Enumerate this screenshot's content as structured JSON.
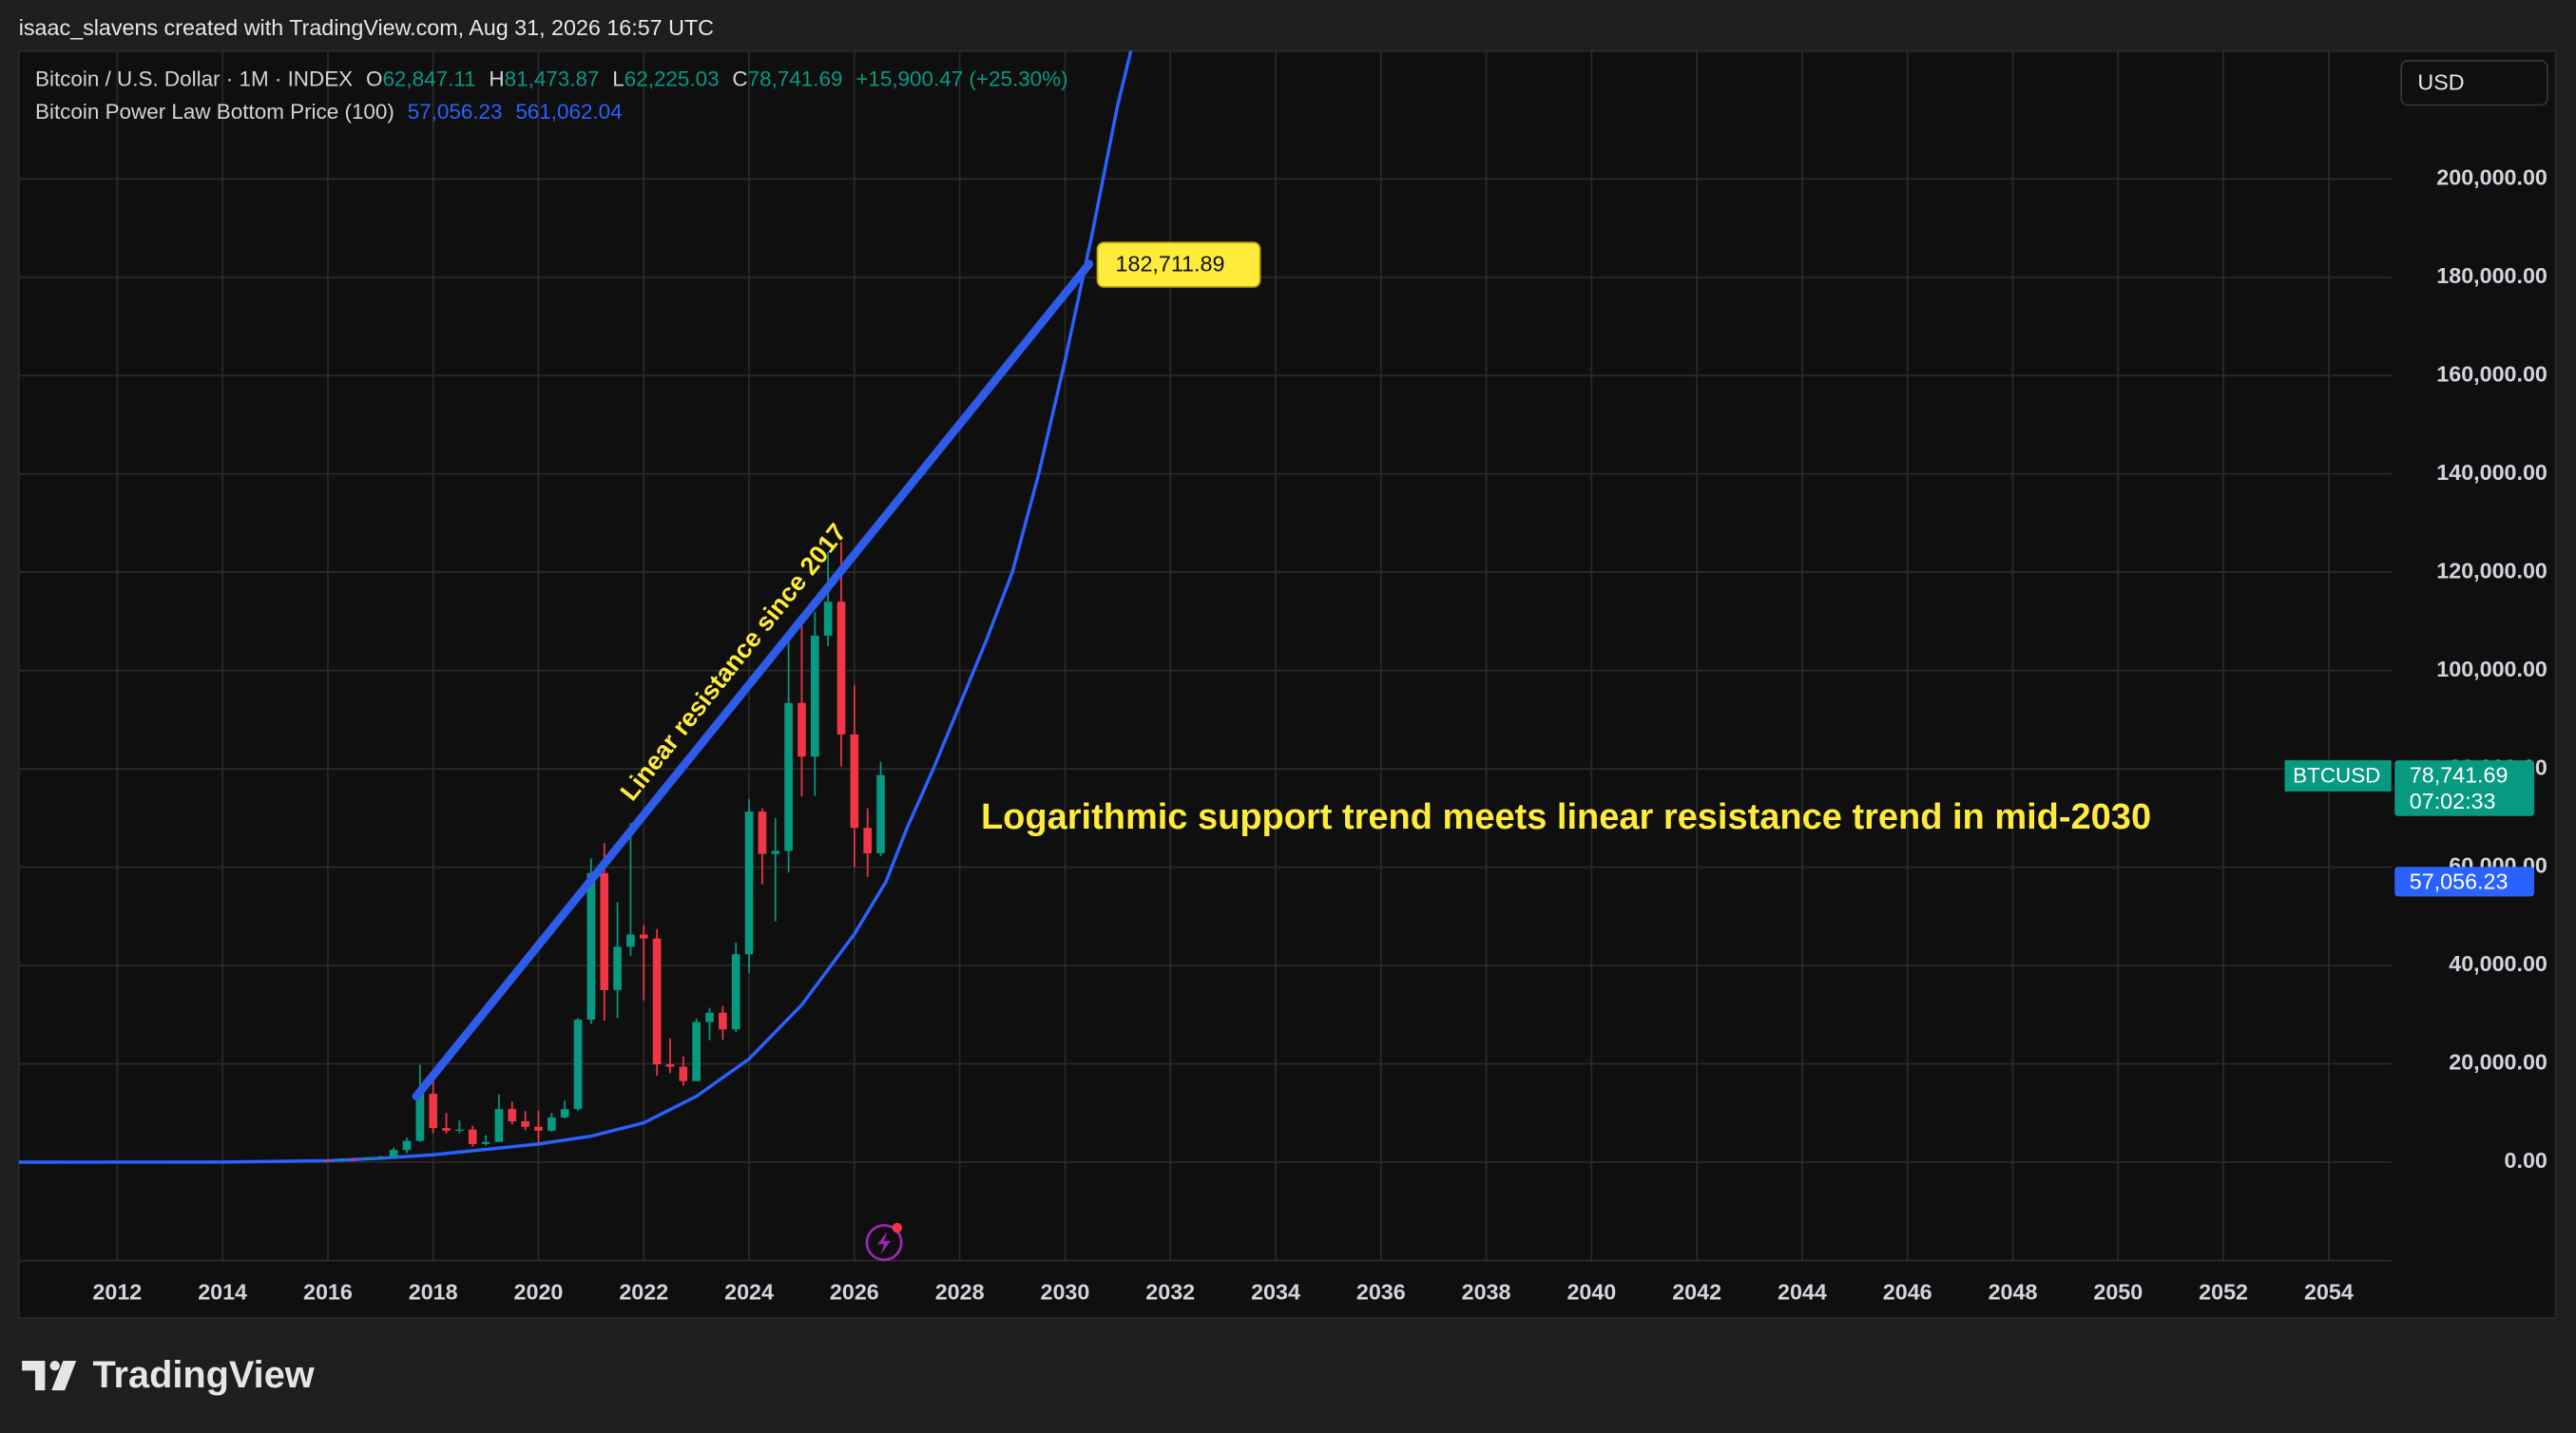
{
  "header": {
    "attribution": "isaac_slavens created with TradingView.com, Aug 31, 2026 16:57 UTC"
  },
  "chart_data": {
    "type": "candlestick",
    "legend": {
      "o_label": "O",
      "open": "62,847.11",
      "h_label": "H",
      "high": "81,473.87",
      "l_label": "L",
      "low": "62,225.03",
      "c_label": "C",
      "close": "78,741.69",
      "change": "+15,900.47 (+25.30%)",
      "value_color": "#089981",
      "indicator_values": [
        "57,056.23",
        "561,062.04"
      ],
      "indicator_color": "#2962ff"
    },
    "currency": "USD",
    "xlim": [
      2010.13,
      2055.19
    ],
    "xticks": [
      2012,
      2014,
      2016,
      2018,
      2020,
      2022,
      2024,
      2026,
      2028,
      2030,
      2032,
      2034,
      2036,
      2038,
      2040,
      2042,
      2044,
      2046,
      2048,
      2050,
      2052,
      2054
    ],
    "ylim": [
      -20030,
      226040
    ],
    "yticks": [
      {
        "value": 0,
        "label": "0.00"
      },
      {
        "value": 20000,
        "label": "20,000.00"
      },
      {
        "value": 40000,
        "label": "40,000.00"
      },
      {
        "value": 60000,
        "label": "60,000.00"
      },
      {
        "value": 80000,
        "label": "80,000.00"
      },
      {
        "value": 100000,
        "label": "100,000.00"
      },
      {
        "value": 120000,
        "label": "120,000.00"
      },
      {
        "value": 140000,
        "label": "140,000.00"
      },
      {
        "value": 160000,
        "label": "160,000.00"
      },
      {
        "value": 180000,
        "label": "180,000.00"
      },
      {
        "value": 200000,
        "label": "200,000.00"
      }
    ],
    "grid": true,
    "candles": {
      "name": "Bitcoin / U.S. Dollar · 1M · INDEX",
      "up_color": "#089981",
      "down_color": "#f23645",
      "x": [
        2016.0,
        2016.25,
        2016.5,
        2016.75,
        2017.0,
        2017.25,
        2017.5,
        2017.75,
        2018.0,
        2018.25,
        2018.5,
        2018.75,
        2019.0,
        2019.25,
        2019.5,
        2019.75,
        2020.0,
        2020.25,
        2020.5,
        2020.75,
        2021.0,
        2021.25,
        2021.5,
        2021.75,
        2022.0,
        2022.25,
        2022.5,
        2022.75,
        2023.0,
        2023.25,
        2023.5,
        2023.75,
        2024.0,
        2024.25,
        2024.5,
        2024.75,
        2025.0,
        2025.25,
        2025.5,
        2025.75,
        2026.0,
        2026.25,
        2026.5
      ],
      "open": [
        430,
        415,
        670,
        610,
        960,
        1070,
        2480,
        4340,
        13900,
        6930,
        6400,
        6630,
        3700,
        4100,
        10800,
        8300,
        7200,
        6400,
        9100,
        10800,
        29000,
        58800,
        35000,
        43800,
        46300,
        45500,
        19900,
        19400,
        16500,
        28500,
        30400,
        27000,
        42300,
        71300,
        62700,
        63300,
        93400,
        82500,
        107100,
        114000,
        87000,
        68000,
        62847.11
      ],
      "high": [
        470,
        780,
        680,
        980,
        1340,
        2980,
        5000,
        19800,
        17200,
        9990,
        8500,
        7400,
        5500,
        13800,
        12300,
        10400,
        10500,
        10000,
        12500,
        29300,
        61800,
        64900,
        52900,
        69000,
        48200,
        47400,
        25200,
        21500,
        29200,
        31400,
        31800,
        44700,
        73800,
        72000,
        70000,
        108300,
        109500,
        111900,
        124100,
        126200,
        97000,
        72000,
        81473.87
      ],
      "low": [
        370,
        415,
        470,
        600,
        750,
        1060,
        1840,
        4100,
        5900,
        5800,
        5900,
        3150,
        3350,
        4100,
        7700,
        6500,
        3800,
        6200,
        8900,
        10400,
        28100,
        28800,
        29300,
        42000,
        32900,
        17600,
        18100,
        15500,
        16500,
        24800,
        24900,
        26500,
        38500,
        56500,
        49000,
        58900,
        74400,
        74500,
        105000,
        80500,
        60000,
        58000,
        62225.03
      ],
      "close": [
        415,
        670,
        610,
        960,
        1070,
        2480,
        4340,
        13900,
        6930,
        6400,
        6630,
        3700,
        4100,
        10800,
        8300,
        7200,
        6400,
        9100,
        10800,
        29000,
        58800,
        35000,
        43800,
        46300,
        45500,
        19900,
        19400,
        16500,
        28500,
        30400,
        27000,
        42300,
        71300,
        62700,
        63300,
        93400,
        82500,
        107100,
        114000,
        87000,
        68000,
        62800,
        78741.69
      ]
    },
    "series": [
      {
        "name": "Bitcoin Power Law Bottom Price (100)",
        "color": "#2962ff",
        "x": [
          2010.13,
          2014,
          2016,
          2017,
          2018,
          2019,
          2020,
          2021,
          2022,
          2023,
          2024,
          2025,
          2026,
          2026.6,
          2027,
          2027.5,
          2028,
          2028.5,
          2029,
          2029.5,
          2030,
          2030.5,
          2031,
          2031.25
        ],
        "values": [
          0,
          20,
          300,
          800,
          1500,
          2600,
          3700,
          5300,
          8000,
          13400,
          21000,
          32000,
          46400,
          57056.23,
          68000,
          80000,
          93000,
          106000,
          120000,
          140000,
          163000,
          188000,
          215000,
          226000
        ]
      }
    ],
    "trend_lines": [
      {
        "color": "#2e5bea",
        "x": [
          2017.68,
          2030.46
        ],
        "values": [
          13400,
          182711.89
        ],
        "value_labels": [
          null,
          "182,711.89"
        ],
        "label_color": "#ffeb3b"
      }
    ],
    "price_tags": [
      {
        "name": "BTCUSD",
        "value": 78741.69,
        "label": "78,741.69",
        "countdown": "07:02:33",
        "color": "#089981"
      },
      {
        "value": 57056.23,
        "label": "57,056.23",
        "color": "#2962ff"
      }
    ],
    "annotations": [
      {
        "text": "Linear resistance since 2017",
        "color": "#ffeb3b"
      },
      {
        "text": "Logarithmic support trend meets linear resistance trend in mid-2030",
        "color": "#ffeb3b"
      }
    ]
  },
  "footer": {
    "brand": "TradingView"
  }
}
